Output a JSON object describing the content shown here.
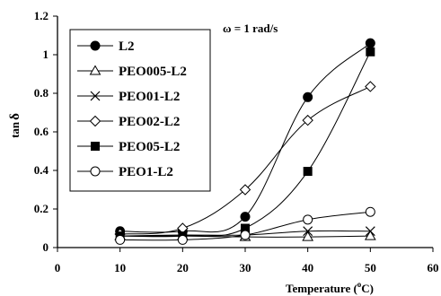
{
  "chart_data": {
    "type": "line",
    "x": [
      10,
      20,
      30,
      40,
      50
    ],
    "xlabel": "Temperature (",
    "xlabel_sup": "o",
    "xlabel_end": "C)",
    "ylabel_a": "tan",
    "ylabel_b": "δ",
    "xlim": [
      0,
      60
    ],
    "ylim": [
      0,
      1.2
    ],
    "xticks": [
      "0",
      "10",
      "20",
      "30",
      "40",
      "50",
      "60"
    ],
    "yticks": [
      "0",
      "0.2",
      "0.4",
      "0.6",
      "0.8",
      "1",
      "1.2"
    ],
    "xtick_values": [
      0,
      10,
      20,
      30,
      40,
      50,
      60
    ],
    "ytick_values": [
      0,
      0.2,
      0.4,
      0.6,
      0.8,
      1.0,
      1.2
    ],
    "annotation": "ω = 1 rad/s",
    "grid": false,
    "legend_position": "top-left",
    "series": [
      {
        "name": "L2",
        "marker": "circle-filled",
        "values": [
          0.085,
          0.085,
          0.16,
          0.78,
          1.06
        ]
      },
      {
        "name": "PEO005-L2",
        "marker": "triangle-open",
        "values": [
          0.06,
          0.06,
          0.055,
          0.055,
          0.06
        ]
      },
      {
        "name": "PEO01-L2",
        "marker": "x",
        "values": [
          0.06,
          0.065,
          0.065,
          0.085,
          0.085
        ]
      },
      {
        "name": "PEO02-L2",
        "marker": "diamond-open",
        "values": [
          0.07,
          0.1,
          0.3,
          0.66,
          0.835
        ]
      },
      {
        "name": "PEO05-L2",
        "marker": "square-filled",
        "values": [
          0.06,
          0.06,
          0.1,
          0.395,
          1.015
        ]
      },
      {
        "name": "PEO1-L2",
        "marker": "circle-open",
        "values": [
          0.04,
          0.04,
          0.065,
          0.145,
          0.185
        ]
      }
    ]
  }
}
